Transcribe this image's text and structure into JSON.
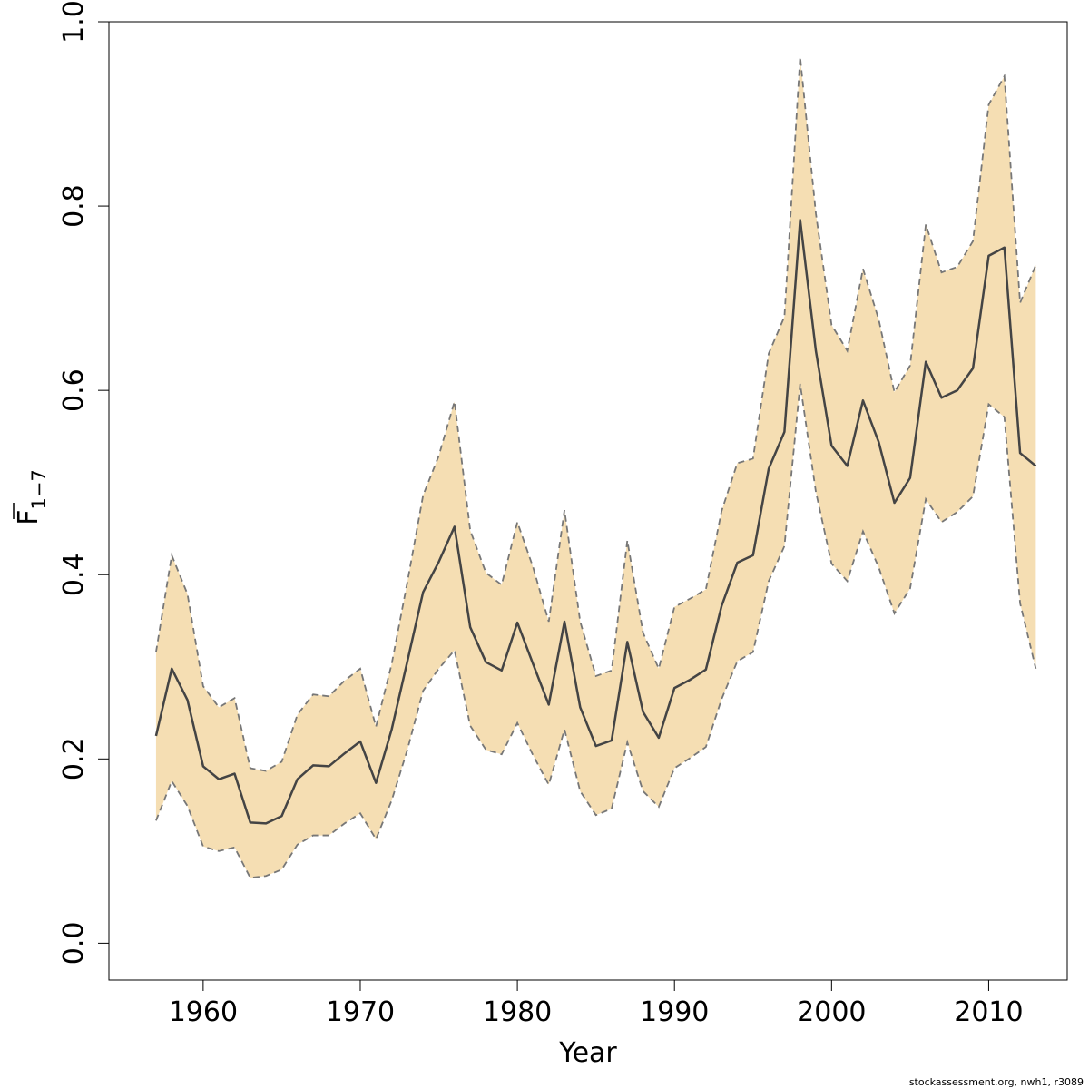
{
  "chart_data": {
    "type": "line",
    "xlabel": "Year",
    "ylabel": {
      "main": "F",
      "subscript": "1−7"
    },
    "xlim": [
      1954,
      2015
    ],
    "ylim": [
      -0.04,
      1.0
    ],
    "x_ticks": [
      1960,
      1970,
      1980,
      1990,
      2000,
      2010
    ],
    "y_ticks": [
      0.0,
      0.2,
      0.4,
      0.6,
      0.8,
      1.0
    ],
    "y_tick_labels": [
      "0.0",
      "0.2",
      "0.4",
      "0.6",
      "0.8",
      "1.0"
    ],
    "grid": false,
    "legend": "none",
    "colors": {
      "band_fill": "#F5DEB3",
      "band_edge": "#777777",
      "line": "#444444",
      "axis": "#000000"
    },
    "x": [
      1957,
      1958,
      1959,
      1960,
      1961,
      1962,
      1963,
      1964,
      1965,
      1966,
      1967,
      1968,
      1969,
      1970,
      1971,
      1972,
      1973,
      1974,
      1975,
      1976,
      1977,
      1978,
      1979,
      1980,
      1981,
      1982,
      1983,
      1984,
      1985,
      1986,
      1987,
      1988,
      1989,
      1990,
      1991,
      1992,
      1993,
      1994,
      1995,
      1996,
      1997,
      1998,
      1999,
      2000,
      2001,
      2002,
      2003,
      2004,
      2005,
      2006,
      2007,
      2008,
      2009,
      2010,
      2011,
      2012,
      2013
    ],
    "series": [
      {
        "name": "",
        "role": "estimate",
        "values": [
          0.225,
          0.298,
          0.264,
          0.192,
          0.178,
          0.184,
          0.131,
          0.13,
          0.138,
          0.178,
          0.193,
          0.192,
          0.206,
          0.219,
          0.174,
          0.232,
          0.306,
          0.381,
          0.414,
          0.452,
          0.343,
          0.305,
          0.296,
          0.348,
          0.303,
          0.259,
          0.349,
          0.256,
          0.214,
          0.22,
          0.327,
          0.251,
          0.223,
          0.277,
          0.286,
          0.297,
          0.366,
          0.413,
          0.421,
          0.515,
          0.555,
          0.785,
          0.643,
          0.54,
          0.518,
          0.589,
          0.544,
          0.478,
          0.505,
          0.631,
          0.592,
          0.6,
          0.624,
          0.746,
          0.755,
          0.532,
          0.518
        ]
      },
      {
        "name": "",
        "role": "upper",
        "values": [
          0.316,
          0.421,
          0.379,
          0.279,
          0.256,
          0.266,
          0.19,
          0.187,
          0.197,
          0.248,
          0.27,
          0.268,
          0.285,
          0.298,
          0.235,
          0.303,
          0.392,
          0.486,
          0.529,
          0.588,
          0.448,
          0.402,
          0.389,
          0.457,
          0.408,
          0.349,
          0.47,
          0.349,
          0.29,
          0.296,
          0.437,
          0.337,
          0.298,
          0.365,
          0.374,
          0.384,
          0.469,
          0.521,
          0.526,
          0.64,
          0.68,
          0.962,
          0.792,
          0.671,
          0.643,
          0.732,
          0.677,
          0.598,
          0.627,
          0.78,
          0.728,
          0.734,
          0.762,
          0.91,
          0.941,
          0.695,
          0.736
        ]
      },
      {
        "name": "",
        "role": "lower",
        "values": [
          0.133,
          0.176,
          0.149,
          0.105,
          0.1,
          0.104,
          0.071,
          0.073,
          0.08,
          0.107,
          0.117,
          0.117,
          0.13,
          0.141,
          0.113,
          0.155,
          0.21,
          0.274,
          0.298,
          0.318,
          0.236,
          0.21,
          0.205,
          0.239,
          0.204,
          0.172,
          0.232,
          0.165,
          0.139,
          0.146,
          0.218,
          0.165,
          0.148,
          0.19,
          0.201,
          0.213,
          0.265,
          0.306,
          0.316,
          0.393,
          0.431,
          0.607,
          0.49,
          0.412,
          0.393,
          0.447,
          0.408,
          0.358,
          0.385,
          0.482,
          0.457,
          0.468,
          0.485,
          0.585,
          0.571,
          0.369,
          0.298
        ]
      }
    ]
  },
  "footer": {
    "note": "stockassessment.org, nwh1, r3089"
  }
}
